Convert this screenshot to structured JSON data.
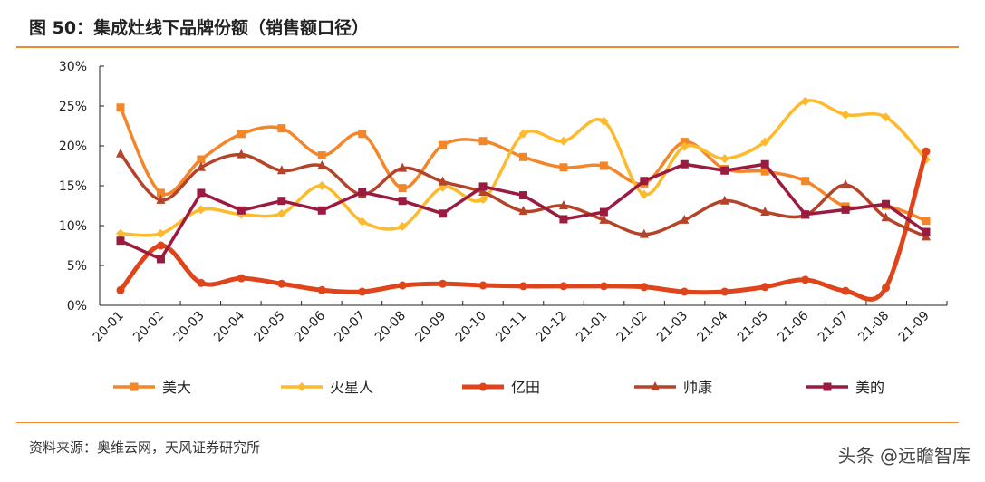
{
  "title": "图 50：集成灶线下品牌份额（销售额口径）",
  "source": "资料来源：奥维云网，天风证券研究所",
  "watermark": "头条 @远瞻智库",
  "chart_data": {
    "type": "line",
    "title": "",
    "xlabel": "",
    "ylabel": "",
    "ylim": [
      0,
      30
    ],
    "yticks": [
      "0%",
      "5%",
      "10%",
      "15%",
      "20%",
      "25%",
      "30%"
    ],
    "legend_position": "bottom",
    "grid": false,
    "categories": [
      "20-01",
      "20-02",
      "20-03",
      "20-04",
      "20-05",
      "20-06",
      "20-07",
      "20-08",
      "20-09",
      "20-10",
      "20-11",
      "20-12",
      "21-01",
      "21-02",
      "21-03",
      "21-04",
      "21-05",
      "21-06",
      "21-07",
      "21-08",
      "21-09"
    ],
    "series": [
      {
        "name": "美大",
        "color": "#F4862A",
        "marker": "square",
        "smooth": true,
        "values": [
          24.8,
          14.1,
          18.3,
          21.5,
          22.2,
          18.8,
          21.5,
          14.7,
          20.1,
          20.6,
          18.6,
          17.3,
          17.5,
          15.3,
          20.5,
          17.1,
          16.8,
          15.6,
          12.4,
          12.5,
          10.6
        ]
      },
      {
        "name": "火星人",
        "color": "#FDBA2C",
        "marker": "diamond",
        "smooth": true,
        "values": [
          9.0,
          9.0,
          12.0,
          11.4,
          11.5,
          15.0,
          10.5,
          9.9,
          14.8,
          13.3,
          21.5,
          20.6,
          23.1,
          13.9,
          19.9,
          18.4,
          20.5,
          25.6,
          23.9,
          23.6,
          18.3
        ]
      },
      {
        "name": "亿田",
        "color": "#E0441A",
        "marker": "circle",
        "smooth": true,
        "thick": true,
        "values": [
          1.9,
          7.5,
          2.8,
          3.4,
          2.7,
          1.9,
          1.7,
          2.5,
          2.7,
          2.5,
          2.4,
          2.4,
          2.4,
          2.3,
          1.7,
          1.7,
          2.3,
          3.2,
          1.8,
          2.2,
          19.3
        ]
      },
      {
        "name": "帅康",
        "color": "#B5432A",
        "marker": "triangle",
        "smooth": true,
        "values": [
          19.0,
          13.2,
          17.3,
          18.9,
          16.9,
          17.5,
          13.9,
          17.2,
          15.5,
          14.2,
          11.8,
          12.5,
          10.7,
          8.9,
          10.7,
          13.1,
          11.7,
          11.3,
          15.1,
          11.0,
          8.6
        ]
      },
      {
        "name": "美的",
        "color": "#9B1B40",
        "marker": "square",
        "smooth": false,
        "values": [
          8.1,
          5.8,
          14.1,
          11.9,
          13.1,
          11.9,
          14.2,
          13.1,
          11.5,
          14.9,
          13.8,
          10.8,
          11.7,
          15.6,
          17.7,
          16.9,
          17.7,
          11.4,
          12.0,
          12.7,
          9.2
        ]
      }
    ]
  }
}
